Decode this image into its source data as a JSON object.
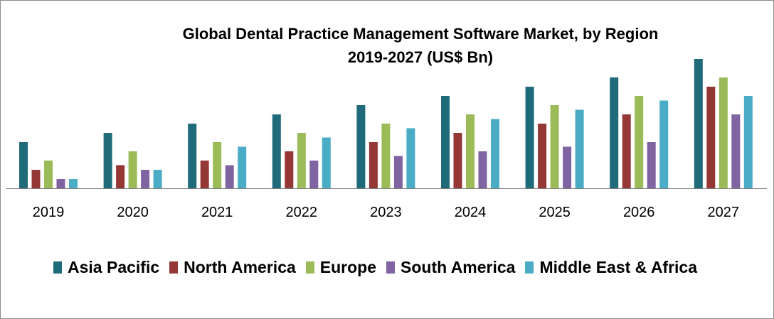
{
  "chart_data": {
    "type": "bar",
    "title": "Global Dental Practice Management Software Market, by Region",
    "subtitle": "2019-2027 (US$ Bn)",
    "categories": [
      "2019",
      "2020",
      "2021",
      "2022",
      "2023",
      "2024",
      "2025",
      "2026",
      "2027"
    ],
    "series": [
      {
        "name": "Asia Pacific",
        "color": "#1f6b7a",
        "values": [
          5,
          6,
          7,
          8,
          9,
          10,
          11,
          12,
          14
        ]
      },
      {
        "name": "North America",
        "color": "#953735",
        "values": [
          2,
          2.5,
          3,
          4,
          5,
          6,
          7,
          8,
          11
        ]
      },
      {
        "name": "Europe",
        "color": "#9bbb59",
        "values": [
          3,
          4,
          5,
          6,
          7,
          8,
          9,
          10,
          12
        ]
      },
      {
        "name": "South America",
        "color": "#8064a2",
        "values": [
          1,
          2,
          2.5,
          3,
          3.5,
          4,
          4.5,
          5,
          8
        ]
      },
      {
        "name": "Middle East & Africa",
        "color": "#4bacc6",
        "values": [
          1,
          2,
          4.5,
          5.5,
          6.5,
          7.5,
          8.5,
          9.5,
          10
        ]
      }
    ],
    "y_axis_shown": false,
    "grid": false,
    "legend": "bottom"
  }
}
